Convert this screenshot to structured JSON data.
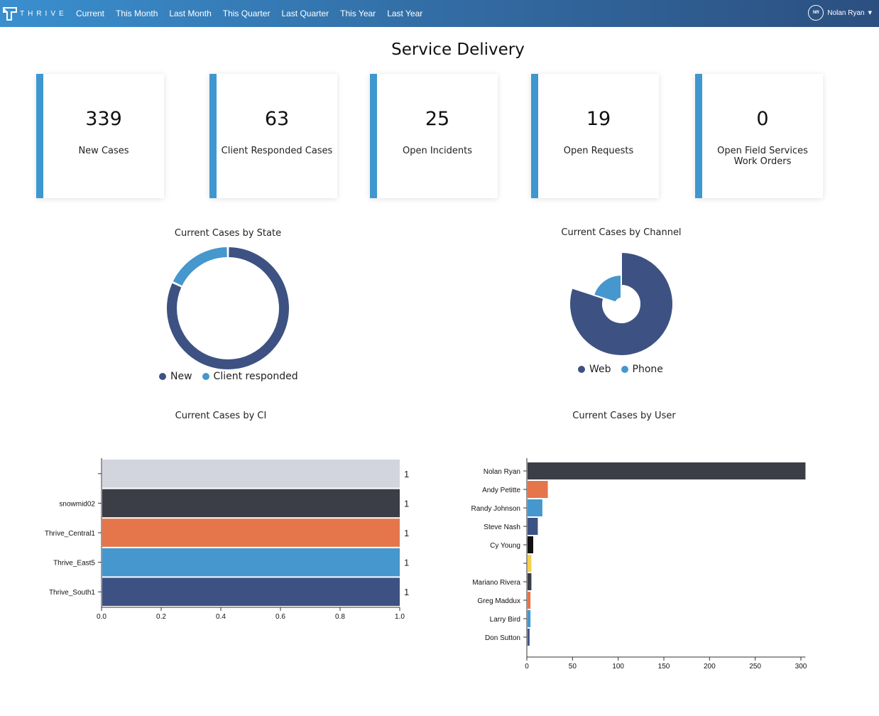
{
  "nav": {
    "brand": "THRIVE",
    "links": [
      "Current",
      "This Month",
      "Last Month",
      "This Quarter",
      "Last Quarter",
      "This Year",
      "Last Year"
    ],
    "user_initials": "NR",
    "user_name": "Nolan Ryan"
  },
  "page": {
    "title": "Service Delivery"
  },
  "kpis": [
    {
      "value": "339",
      "label": "New Cases"
    },
    {
      "value": "63",
      "label": "Client Responded Cases"
    },
    {
      "value": "25",
      "label": "Open Incidents"
    },
    {
      "value": "19",
      "label": "Open Requests"
    },
    {
      "value": "0",
      "label": "Open Field Services Work Orders"
    }
  ],
  "colors": {
    "accent": "#3f97cf",
    "navy": "#3d5282",
    "light_blue": "#4597cd",
    "gray_light": "#d2d5de",
    "charcoal": "#3b3e47",
    "orange": "#e5754b",
    "black": "#111111",
    "yellow": "#f5cf4f"
  },
  "chart_data": [
    {
      "type": "pie",
      "title": "Current Cases by State",
      "categories": [
        "New",
        "Client responded"
      ],
      "values": [
        82,
        18
      ],
      "colors": [
        "#3d5282",
        "#4597cd"
      ],
      "style": "ring"
    },
    {
      "type": "pie",
      "title": "Current Cases by Channel",
      "categories": [
        "Web",
        "Phone"
      ],
      "values": [
        80,
        20
      ],
      "colors": [
        "#3d5282",
        "#4597cd"
      ],
      "style": "nightingale"
    },
    {
      "type": "bar",
      "orientation": "horizontal",
      "title": "Current Cases by CI",
      "categories": [
        "",
        "snowmid02",
        "Thrive_Central1",
        "Thrive_East5",
        "Thrive_South1"
      ],
      "values": [
        1,
        1,
        1,
        1,
        1
      ],
      "value_labels": [
        "1",
        "1",
        "1",
        "1",
        "1"
      ],
      "colors": [
        "#d2d5de",
        "#3b3e47",
        "#e5754b",
        "#4597cd",
        "#3d5282"
      ],
      "xlim": [
        0,
        1
      ],
      "xticks": [
        "0.0",
        "0.2",
        "0.4",
        "0.6",
        "0.8",
        "1.0"
      ]
    },
    {
      "type": "bar",
      "orientation": "horizontal",
      "title": "Current Cases by User",
      "categories": [
        "Nolan Ryan",
        "Andy Petitte",
        "Randy Johnson",
        "Steve Nash",
        "Cy Young",
        "",
        "Mariano Rivera",
        "Greg Maddux",
        "Larry Bird",
        "Don Sutton"
      ],
      "values": [
        305,
        23,
        17,
        12,
        7,
        5,
        5,
        4,
        4,
        3
      ],
      "colors": [
        "#3b3e47",
        "#e5754b",
        "#4597cd",
        "#3d5282",
        "#111111",
        "#f5cf4f",
        "#3b3e47",
        "#e5754b",
        "#4597cd",
        "#3d5282"
      ],
      "xlim": [
        0,
        305
      ],
      "xticks": [
        "0",
        "50",
        "100",
        "150",
        "200",
        "250",
        "300"
      ]
    }
  ]
}
